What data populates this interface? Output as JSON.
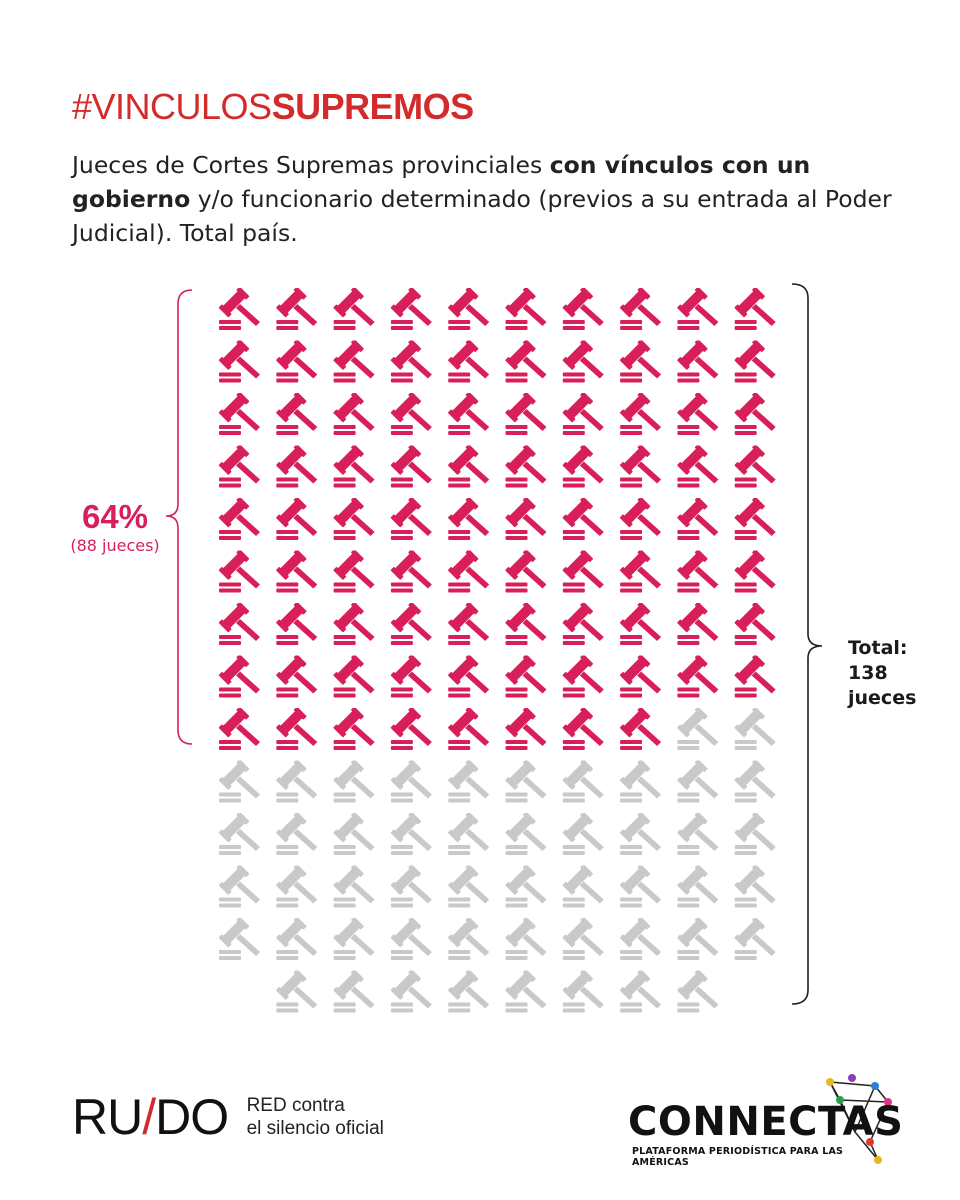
{
  "header": {
    "hashtag_prefix": "#VINCULOS",
    "hashtag_bold": "SUPREMOS",
    "subtitle_part1": "Jueces de Cortes Supremas provinciales ",
    "subtitle_bold": "con vínculos con un gobierno",
    "subtitle_part2": " y/o funcionario determinado (previos a su entrada al Poder Judicial). Total país."
  },
  "annotations": {
    "percent": "64%",
    "percent_detail": "(88 jueces)",
    "total_line1": "Total:",
    "total_line2": "138",
    "total_line3": "jueces"
  },
  "chart_data": {
    "type": "pictogram",
    "icon": "gavel-icon",
    "total": 138,
    "highlighted": 88,
    "columns": 10,
    "highlight_color": "#d81f5a",
    "base_color": "#c9c9c9"
  },
  "footer": {
    "ruido_logo": "RU/DO",
    "ruido_tag_line1": "RED contra",
    "ruido_tag_line2": "el silencio oficial",
    "connectas_name": "CONNECTAS",
    "connectas_sub": "PLATAFORMA PERIODÍSTICA PARA LAS AMÉRICAS"
  }
}
